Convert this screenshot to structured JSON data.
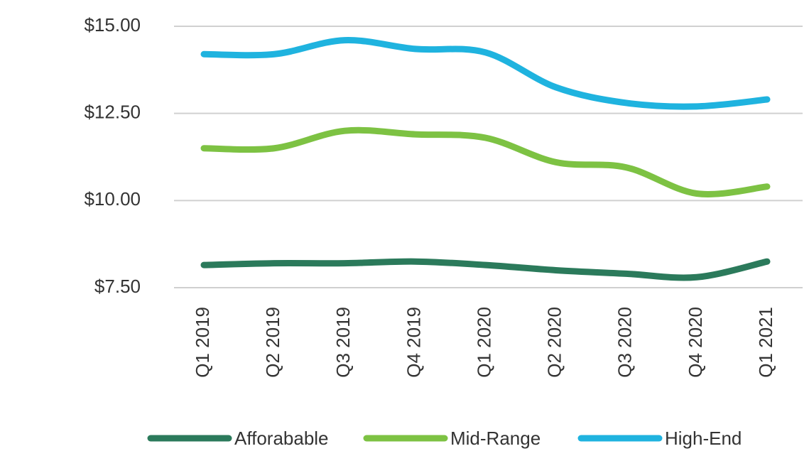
{
  "chart_data": {
    "type": "line",
    "categories": [
      "Q1 2019",
      "Q2 2019",
      "Q3 2019",
      "Q4 2019",
      "Q1 2020",
      "Q2 2020",
      "Q3 2020",
      "Q4 2020",
      "Q1 2021"
    ],
    "series": [
      {
        "name": "Afforabable",
        "color": "#2b7a5b",
        "values": [
          8.15,
          8.2,
          8.2,
          8.25,
          8.15,
          8.0,
          7.9,
          7.8,
          8.25
        ]
      },
      {
        "name": "Mid-Range",
        "color": "#7dc243",
        "values": [
          11.5,
          11.5,
          12.0,
          11.9,
          11.8,
          11.1,
          10.95,
          10.2,
          10.4
        ]
      },
      {
        "name": "High-End",
        "color": "#1fb3df",
        "values": [
          14.2,
          14.2,
          14.6,
          14.35,
          14.25,
          13.25,
          12.8,
          12.7,
          12.9
        ]
      }
    ],
    "ylim": [
      7.5,
      15
    ],
    "yticks": [
      {
        "value": 7.5,
        "label": "$7.50"
      },
      {
        "value": 10,
        "label": "$10.00"
      },
      {
        "value": 12.5,
        "label": "$12.50"
      },
      {
        "value": 15,
        "label": "$15.00"
      }
    ],
    "grid": true,
    "legend": "bottom"
  }
}
